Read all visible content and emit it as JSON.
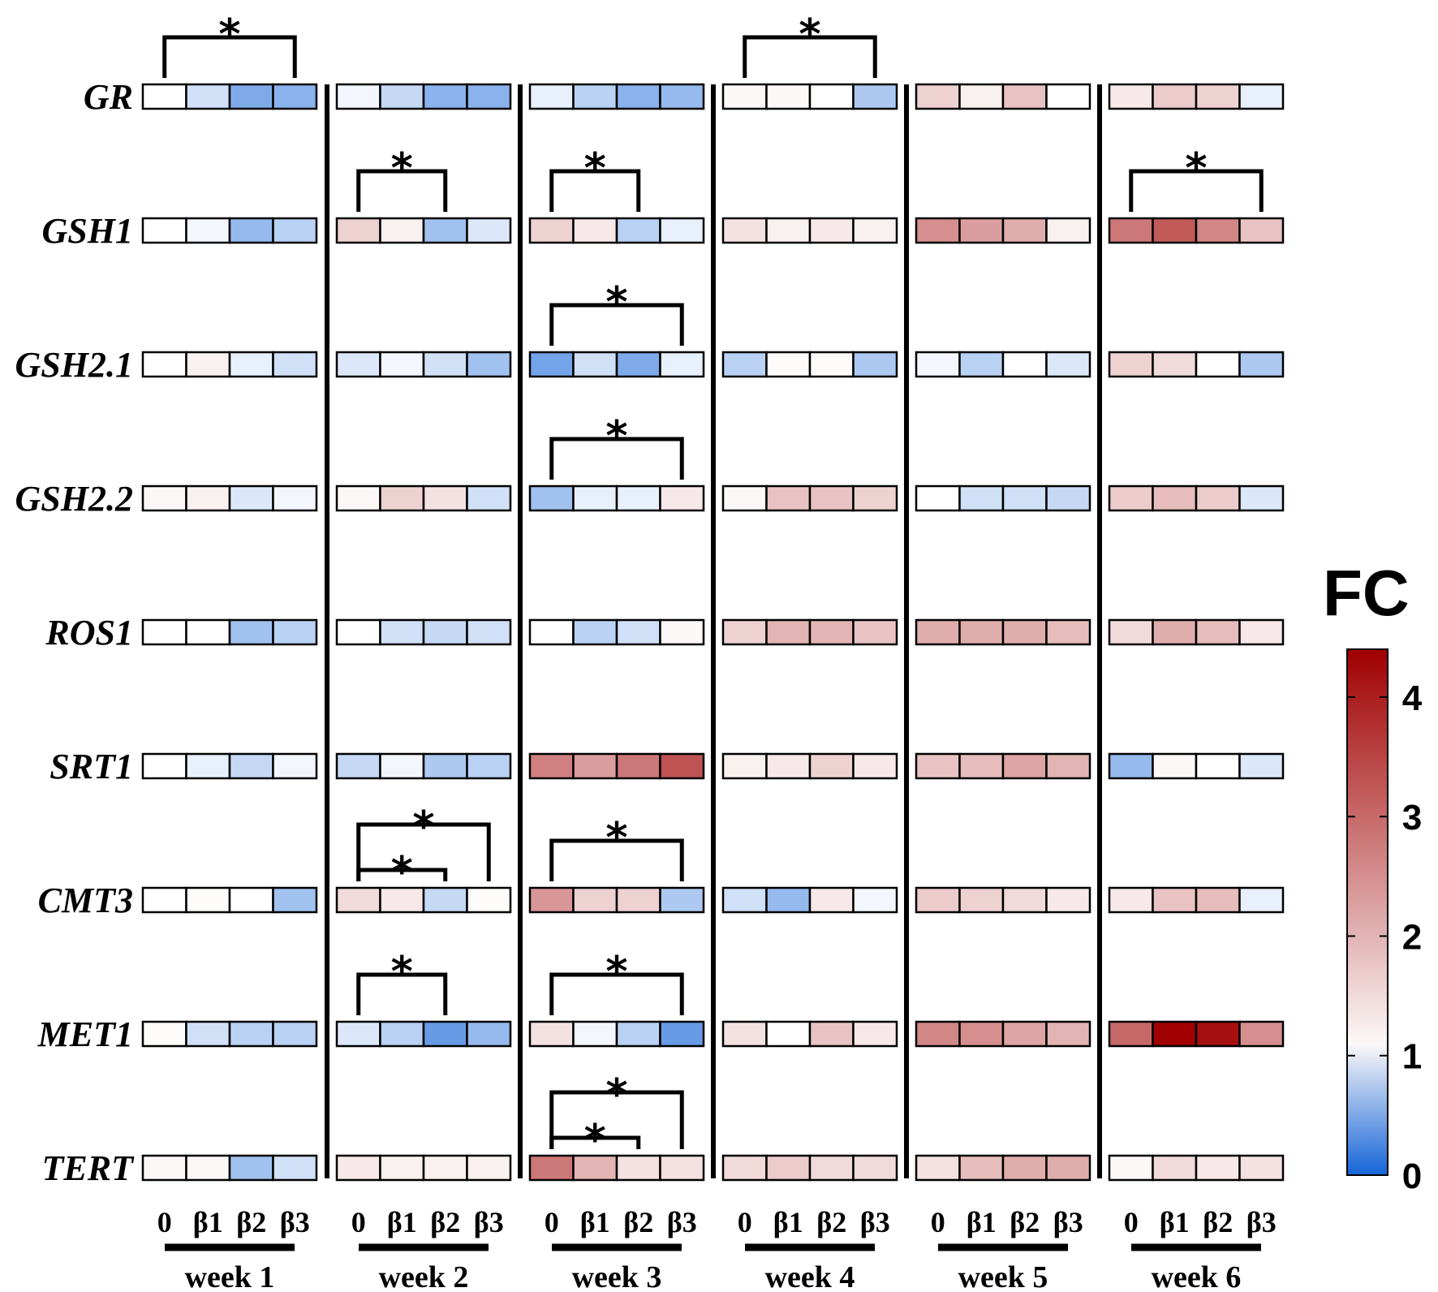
{
  "chart_data": {
    "type": "heatmap",
    "title": "",
    "colorbar": {
      "title": "FC",
      "min": 0,
      "max": 4.4,
      "midpoint": 1,
      "ticks": [
        "0",
        "1",
        "2",
        "3",
        "4"
      ],
      "low_color": "#1565d8",
      "mid_color": "#ffffff",
      "high_color": "#a00000"
    },
    "conditions": [
      "0",
      "β1",
      "β2",
      "β3"
    ],
    "weeks": [
      "week 1",
      "week 2",
      "week 3",
      "week 4",
      "week 5",
      "week 6"
    ],
    "genes": [
      {
        "name": "GR",
        "values": [
          [
            1.0,
            0.8,
            0.45,
            0.5
          ],
          [
            0.95,
            0.75,
            0.5,
            0.5
          ],
          [
            0.9,
            0.7,
            0.5,
            0.55
          ],
          [
            1.1,
            1.1,
            1.0,
            0.65
          ],
          [
            1.6,
            1.2,
            1.8,
            1.0
          ],
          [
            1.3,
            1.7,
            1.6,
            0.9
          ]
        ]
      },
      {
        "name": "GSH1",
        "values": [
          [
            1.0,
            0.95,
            0.55,
            0.7
          ],
          [
            1.6,
            1.2,
            0.6,
            0.85
          ],
          [
            1.6,
            1.3,
            0.7,
            0.9
          ],
          [
            1.4,
            1.2,
            1.3,
            1.2
          ],
          [
            2.5,
            2.3,
            2.1,
            1.2
          ],
          [
            2.8,
            3.2,
            2.6,
            1.8
          ]
        ]
      },
      {
        "name": "GSH2.1",
        "values": [
          [
            1.0,
            1.2,
            0.9,
            0.8
          ],
          [
            0.85,
            0.95,
            0.8,
            0.6
          ],
          [
            0.4,
            0.8,
            0.45,
            0.9
          ],
          [
            0.7,
            1.05,
            1.05,
            0.65
          ],
          [
            0.95,
            0.7,
            1.0,
            0.85
          ],
          [
            1.6,
            1.5,
            1.0,
            0.65
          ]
        ]
      },
      {
        "name": "GSH2.2",
        "values": [
          [
            1.1,
            1.2,
            0.85,
            0.95
          ],
          [
            1.1,
            1.6,
            1.4,
            0.8
          ],
          [
            0.6,
            0.9,
            0.9,
            1.3
          ],
          [
            1.1,
            1.8,
            1.8,
            1.6
          ],
          [
            1.0,
            0.8,
            0.8,
            0.75
          ],
          [
            1.7,
            1.9,
            1.7,
            0.85
          ]
        ]
      },
      {
        "name": "ROS1",
        "values": [
          [
            1.0,
            1.0,
            0.6,
            0.7
          ],
          [
            1.0,
            0.8,
            0.75,
            0.8
          ],
          [
            1.0,
            0.7,
            0.8,
            1.1
          ],
          [
            1.6,
            2.0,
            2.0,
            1.8
          ],
          [
            2.1,
            2.1,
            2.1,
            1.9
          ],
          [
            1.5,
            2.1,
            1.9,
            1.3
          ]
        ]
      },
      {
        "name": "SRT1",
        "values": [
          [
            1.0,
            0.9,
            0.75,
            0.95
          ],
          [
            0.75,
            0.95,
            0.65,
            0.7
          ],
          [
            2.7,
            2.3,
            2.8,
            3.3
          ],
          [
            1.2,
            1.3,
            1.6,
            1.3
          ],
          [
            1.8,
            1.9,
            2.2,
            2.0
          ],
          [
            0.55,
            1.1,
            1.0,
            0.85
          ]
        ]
      },
      {
        "name": "CMT3",
        "values": [
          [
            1.0,
            1.05,
            1.0,
            0.6
          ],
          [
            1.5,
            1.3,
            0.75,
            1.05
          ],
          [
            2.4,
            1.6,
            1.6,
            0.65
          ],
          [
            0.8,
            0.55,
            1.3,
            0.95
          ],
          [
            1.7,
            1.6,
            1.5,
            1.3
          ],
          [
            1.3,
            1.8,
            1.9,
            0.9
          ]
        ]
      },
      {
        "name": "MET1",
        "values": [
          [
            1.05,
            0.8,
            0.7,
            0.7
          ],
          [
            0.85,
            0.7,
            0.35,
            0.55
          ],
          [
            1.4,
            0.95,
            0.7,
            0.35
          ],
          [
            1.4,
            1.0,
            1.8,
            1.3
          ],
          [
            2.6,
            2.5,
            2.2,
            2.0
          ],
          [
            3.0,
            4.4,
            4.2,
            2.5
          ]
        ]
      },
      {
        "name": "TERT",
        "values": [
          [
            1.1,
            1.1,
            0.6,
            0.8
          ],
          [
            1.3,
            1.2,
            1.2,
            1.2
          ],
          [
            2.8,
            2.0,
            1.4,
            1.4
          ],
          [
            1.5,
            1.7,
            1.5,
            1.5
          ],
          [
            1.4,
            1.9,
            2.1,
            2.1
          ],
          [
            1.1,
            1.5,
            1.3,
            1.4
          ]
        ]
      }
    ],
    "significance": [
      {
        "gene": 0,
        "week": 0,
        "from": 0,
        "to": 3,
        "label": "*"
      },
      {
        "gene": 0,
        "week": 3,
        "from": 0,
        "to": 3,
        "label": "*"
      },
      {
        "gene": 1,
        "week": 1,
        "from": 0,
        "to": 2,
        "label": "*"
      },
      {
        "gene": 1,
        "week": 2,
        "from": 0,
        "to": 2,
        "label": "*"
      },
      {
        "gene": 1,
        "week": 5,
        "from": 0,
        "to": 3,
        "label": "*"
      },
      {
        "gene": 2,
        "week": 2,
        "from": 0,
        "to": 3,
        "label": "*"
      },
      {
        "gene": 3,
        "week": 2,
        "from": 0,
        "to": 3,
        "label": "*"
      },
      {
        "gene": 6,
        "week": 1,
        "from": 0,
        "to": 3,
        "label": "*",
        "level": 1
      },
      {
        "gene": 6,
        "week": 1,
        "from": 0,
        "to": 2,
        "label": "*",
        "level": 0
      },
      {
        "gene": 6,
        "week": 2,
        "from": 0,
        "to": 3,
        "label": "*"
      },
      {
        "gene": 7,
        "week": 1,
        "from": 0,
        "to": 2,
        "label": "*"
      },
      {
        "gene": 7,
        "week": 2,
        "from": 0,
        "to": 3,
        "label": "*"
      },
      {
        "gene": 8,
        "week": 2,
        "from": 0,
        "to": 3,
        "label": "*",
        "level": 1
      },
      {
        "gene": 8,
        "week": 2,
        "from": 0,
        "to": 2,
        "label": "*",
        "level": 0
      }
    ]
  }
}
